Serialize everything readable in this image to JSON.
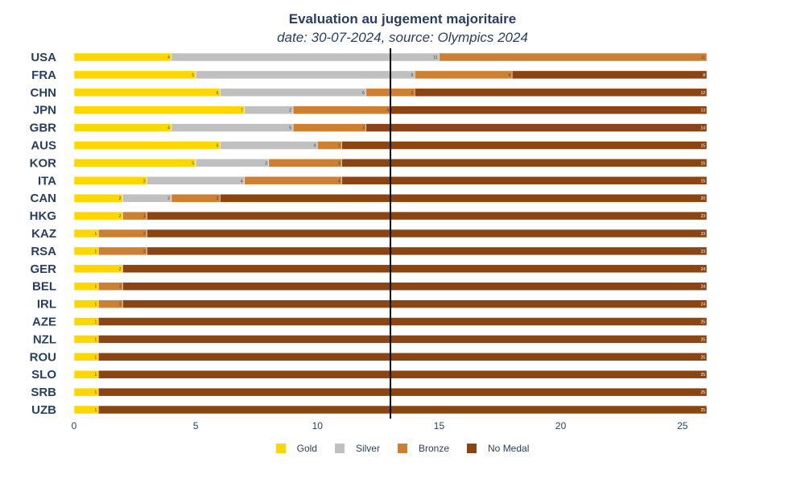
{
  "chart_data": {
    "type": "bar",
    "orientation": "horizontal",
    "stacked": true,
    "title": "Evaluation au jugement majoritaire",
    "subtitle": "date: 30-07-2024, source: Olympics 2024",
    "categories": [
      "USA",
      "FRA",
      "CHN",
      "JPN",
      "GBR",
      "AUS",
      "KOR",
      "ITA",
      "CAN",
      "HKG",
      "KAZ",
      "RSA",
      "GER",
      "BEL",
      "IRL",
      "AZE",
      "NZL",
      "ROU",
      "SLO",
      "SRB",
      "UZB"
    ],
    "series": [
      {
        "name": "Gold",
        "color": "#FFD700",
        "values": [
          4,
          5,
          6,
          7,
          4,
          6,
          5,
          3,
          2,
          2,
          1,
          1,
          2,
          1,
          1,
          1,
          1,
          1,
          1,
          1,
          1
        ]
      },
      {
        "name": "Silver",
        "color": "#C0C0C0",
        "values": [
          11,
          9,
          6,
          2,
          5,
          4,
          3,
          4,
          2,
          0,
          0,
          0,
          0,
          0,
          0,
          0,
          0,
          0,
          0,
          0,
          0
        ]
      },
      {
        "name": "Bronze",
        "color": "#CD7F32",
        "values": [
          11,
          4,
          2,
          4,
          3,
          1,
          3,
          4,
          2,
          1,
          2,
          2,
          0,
          1,
          1,
          0,
          0,
          0,
          0,
          0,
          0
        ]
      },
      {
        "name": "No Medal",
        "color": "#8B4513",
        "values": [
          0,
          8,
          12,
          13,
          14,
          15,
          15,
          15,
          20,
          23,
          23,
          23,
          24,
          24,
          24,
          25,
          25,
          25,
          25,
          25,
          25
        ]
      }
    ],
    "xlim": [
      0,
      26
    ],
    "xticks": [
      0,
      5,
      10,
      15,
      20,
      25
    ],
    "median_line": 13,
    "legend": "bottom-center"
  }
}
